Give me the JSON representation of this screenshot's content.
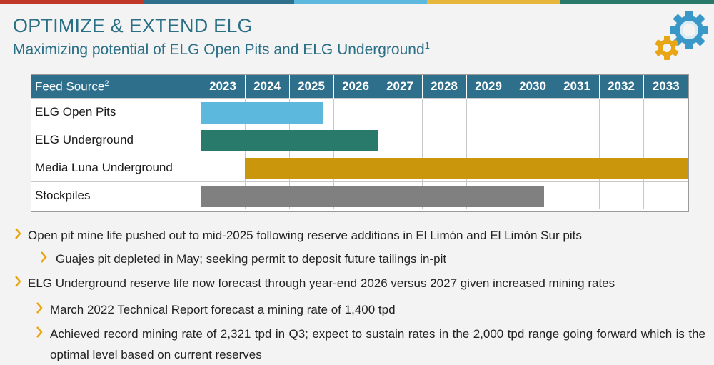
{
  "colors": {
    "top_bar": [
      "#c0392b",
      "#2e6f8c",
      "#5cb8dc",
      "#e8b53d",
      "#2a7a6c"
    ],
    "header_bg": "#2e6f8c",
    "open_pits": "#5cb8dc",
    "underground": "#2a7a6c",
    "media_luna": "#c9960c",
    "stockpiles": "#808080",
    "title": "#2a6f86",
    "arrow": "#e8a617"
  },
  "header": {
    "title": "OPTIMIZE & EXTEND ELG",
    "subtitle": "Maximizing potential of ELG Open Pits and ELG Underground",
    "subtitle_sup": "1",
    "logo_icon": "gears-icon"
  },
  "table": {
    "feed_source_label": "Feed Source",
    "feed_source_sup": "2",
    "years": [
      "2023",
      "2024",
      "2025",
      "2026",
      "2027",
      "2028",
      "2029",
      "2030",
      "2031",
      "2032",
      "2033"
    ],
    "rows": [
      {
        "label": "ELG Open Pits",
        "start_year": 2023,
        "end_year": 2025.75,
        "color_key": "open_pits"
      },
      {
        "label": "ELG Underground",
        "start_year": 2023,
        "end_year": 2027,
        "color_key": "underground"
      },
      {
        "label": "Media Luna Underground",
        "start_year": 2024,
        "end_year": 2034,
        "color_key": "media_luna"
      },
      {
        "label": "Stockpiles",
        "start_year": 2023,
        "end_year": 2030.75,
        "color_key": "stockpiles"
      }
    ]
  },
  "bullets": [
    {
      "level": 1,
      "text": "Open pit mine life pushed out to mid-2025 following reserve additions in El Limón and El Limón Sur pits"
    },
    {
      "level": 2,
      "text": "Guajes pit depleted in May; seeking permit to deposit future tailings in-pit"
    },
    {
      "level": 1,
      "text": "ELG Underground reserve life now forecast through year-end 2026 versus 2027 given increased mining rates"
    },
    {
      "level": 2,
      "text": "March 2022 Technical Report forecast a mining rate of 1,400 tpd"
    },
    {
      "level": 2,
      "text": "Achieved record mining rate of 2,321 tpd in Q3; expect to sustain rates in the 2,000 tpd range going forward which is the optimal level based on current reserves"
    }
  ]
}
